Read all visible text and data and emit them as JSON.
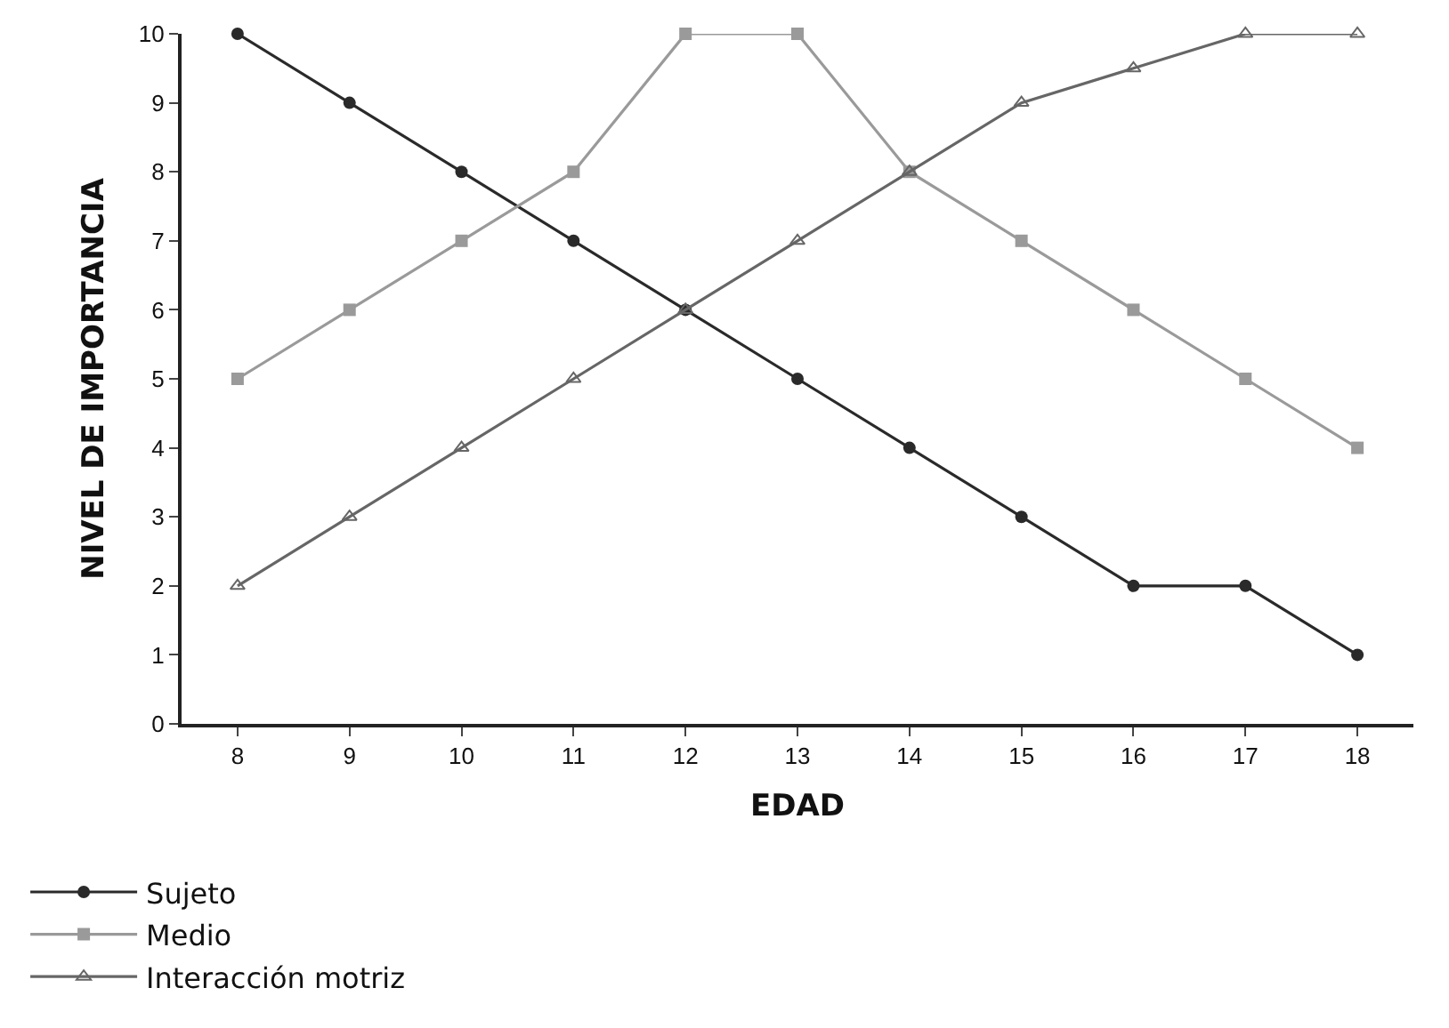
{
  "chart_data": {
    "type": "line",
    "xlabel": "EDAD",
    "ylabel": "NIVEL DE IMPORTANCIA",
    "categories": [
      "8",
      "9",
      "10",
      "11",
      "12",
      "13",
      "14",
      "15",
      "16",
      "17",
      "18"
    ],
    "ylim": [
      0,
      10
    ],
    "yticks": [
      0,
      1,
      2,
      3,
      4,
      5,
      6,
      7,
      8,
      9,
      10
    ],
    "legend": "bottom left",
    "series": [
      {
        "name": "Sujeto",
        "color": "#2a2a2a",
        "marker": "circle",
        "values": [
          10,
          9,
          8,
          7,
          6,
          5,
          4,
          3,
          2,
          2,
          1
        ]
      },
      {
        "name": "Medio",
        "color": "#9a9a9a",
        "marker": "square",
        "values": [
          5,
          6,
          7,
          8,
          10,
          10,
          8,
          7,
          6,
          5,
          4
        ]
      },
      {
        "name": "Interacción motriz",
        "color": "#666666",
        "marker": "triangle",
        "values": [
          2,
          3,
          4,
          5,
          6,
          7,
          8,
          9,
          9.5,
          10,
          10
        ]
      }
    ]
  }
}
